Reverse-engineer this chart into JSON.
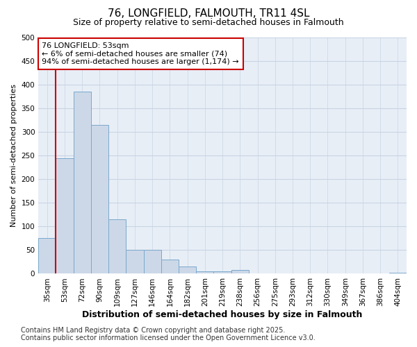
{
  "title1": "76, LONGFIELD, FALMOUTH, TR11 4SL",
  "title2": "Size of property relative to semi-detached houses in Falmouth",
  "xlabel": "Distribution of semi-detached houses by size in Falmouth",
  "ylabel": "Number of semi-detached properties",
  "annotation_title": "76 LONGFIELD: 53sqm",
  "annotation_line1": "← 6% of semi-detached houses are smaller (74)",
  "annotation_line2": "94% of semi-detached houses are larger (1,174) →",
  "footer1": "Contains HM Land Registry data © Crown copyright and database right 2025.",
  "footer2": "Contains public sector information licensed under the Open Government Licence v3.0.",
  "bins": [
    "35sqm",
    "53sqm",
    "72sqm",
    "90sqm",
    "109sqm",
    "127sqm",
    "146sqm",
    "164sqm",
    "182sqm",
    "201sqm",
    "219sqm",
    "238sqm",
    "256sqm",
    "275sqm",
    "293sqm",
    "312sqm",
    "330sqm",
    "349sqm",
    "367sqm",
    "386sqm",
    "404sqm"
  ],
  "values": [
    75,
    245,
    385,
    315,
    115,
    50,
    50,
    30,
    15,
    5,
    5,
    8,
    0,
    0,
    0,
    0,
    0,
    0,
    0,
    0,
    2
  ],
  "bar_color": "#ccd8e8",
  "bar_edge_color": "#7aa8cc",
  "highlight_color": "#cc0000",
  "highlight_bar_index": 1,
  "ylim": [
    0,
    500
  ],
  "yticks": [
    0,
    50,
    100,
    150,
    200,
    250,
    300,
    350,
    400,
    450,
    500
  ],
  "grid_color": "#c8d4e4",
  "bg_color": "#e8eef6",
  "fig_bg_color": "#ffffff",
  "annotation_box_bg": "#ffffff",
  "annotation_box_edge": "#cc0000",
  "title1_fontsize": 11,
  "title2_fontsize": 9,
  "xlabel_fontsize": 9,
  "ylabel_fontsize": 8,
  "tick_fontsize": 7.5,
  "annotation_fontsize": 8,
  "footer_fontsize": 7
}
